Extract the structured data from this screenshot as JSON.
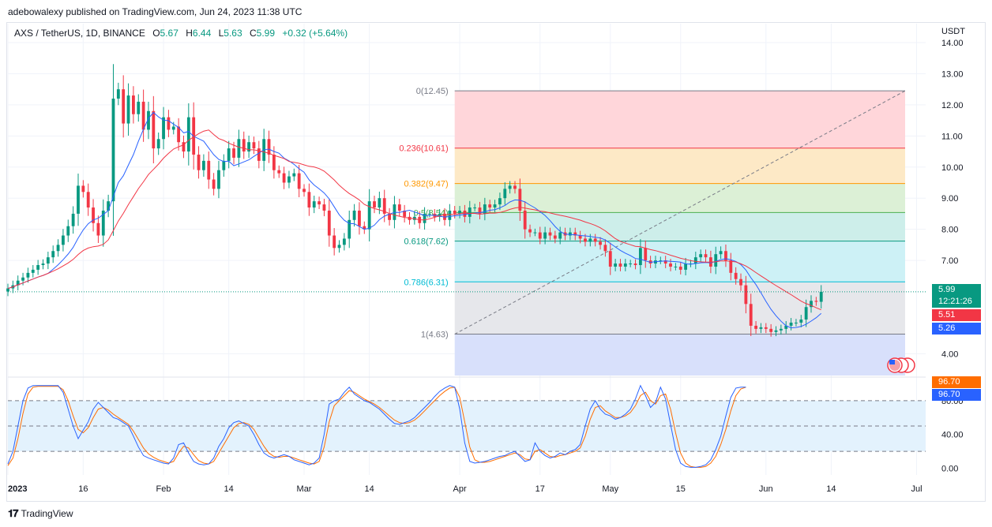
{
  "header": {
    "publisher": "adebowalexy published on TradingView.com, Jun 24, 2023 11:38 UTC"
  },
  "legend": {
    "symbol": "AXS / TetherUS, 1D, BINANCE",
    "open_label": "O",
    "open": "5.67",
    "high_label": "H",
    "high": "6.44",
    "low_label": "L",
    "low": "5.63",
    "close_label": "C",
    "close": "5.99",
    "change": "+0.32 (+5.64%)"
  },
  "currency": "USDT",
  "footer": {
    "brand": "TradingView"
  },
  "colors": {
    "up": "#089981",
    "down": "#f23645",
    "sma_fast": "#2962ff",
    "sma_slow": "#f23645",
    "stoch_k": "#2962ff",
    "stoch_d": "#ff6d00"
  },
  "price_tags": {
    "last": "5.99",
    "countdown": "12:21:26",
    "sma_slow": "5.51",
    "sma_fast": "5.26",
    "stoch_d": "96.70",
    "stoch_k": "96.70"
  },
  "chart_data": [
    {
      "type": "candlestick",
      "ylim": [
        3.3,
        14.0
      ],
      "yticks": [
        "14.00",
        "13.00",
        "12.00",
        "11.00",
        "10.00",
        "9.00",
        "8.00",
        "7.00",
        "4.00"
      ],
      "ytick_values": [
        14,
        13,
        12,
        11,
        10,
        9,
        8,
        7,
        4
      ],
      "xtick_labels": [
        "2023",
        "16",
        "Feb",
        "14",
        "Mar",
        "14",
        "Apr",
        "17",
        "May",
        "15",
        "Jun",
        "14",
        "Jul"
      ],
      "xtick_dates": [
        "2023-01-01",
        "2023-01-16",
        "2023-02-01",
        "2023-02-14",
        "2023-03-01",
        "2023-03-14",
        "2023-04-01",
        "2023-04-17",
        "2023-05-01",
        "2023-05-15",
        "2023-06-01",
        "2023-06-14",
        "2023-07-01"
      ],
      "first_date": "2023-01-01",
      "last_date": "2023-06-24",
      "close_series": [
        6.1,
        6.2,
        6.35,
        6.45,
        6.6,
        6.7,
        6.85,
        6.9,
        7.1,
        7.3,
        7.5,
        7.8,
        8.1,
        8.5,
        9.4,
        9.2,
        8.7,
        8.2,
        7.8,
        8.6,
        8.9,
        12.2,
        12.5,
        11.4,
        12.3,
        11.7,
        12.1,
        11.2,
        11.8,
        10.6,
        10.9,
        11.6,
        11.2,
        11.3,
        10.8,
        10.5,
        11.6,
        10.4,
        9.9,
        10.2,
        9.6,
        9.3,
        9.9,
        10.2,
        10.6,
        10.3,
        10.9,
        10.5,
        10.8,
        10.6,
        10.2,
        10.9,
        10.4,
        9.9,
        9.8,
        9.5,
        9.7,
        9.8,
        9.3,
        9.2,
        8.7,
        8.9,
        8.8,
        8.6,
        7.8,
        7.4,
        7.5,
        7.7,
        8.3,
        8.6,
        8.1,
        8.0,
        8.9,
        8.7,
        9.0,
        8.5,
        8.3,
        8.8,
        8.6,
        8.4,
        8.3,
        8.4,
        8.2,
        8.5,
        8.5,
        8.4,
        8.5,
        8.3,
        8.6,
        8.5,
        8.6,
        8.4,
        8.7,
        8.7,
        8.5,
        8.8,
        8.7,
        8.8,
        9.0,
        9.3,
        9.4,
        9.3,
        8.6,
        8.0,
        7.9,
        7.9,
        7.7,
        7.9,
        7.8,
        7.7,
        7.9,
        7.8,
        7.9,
        7.8,
        7.7,
        7.6,
        7.7,
        7.6,
        7.5,
        7.3,
        6.8,
        6.9,
        6.8,
        6.9,
        6.9,
        6.85,
        7.4,
        7.0,
        6.9,
        7.0,
        7.0,
        6.9,
        6.8,
        6.8,
        6.7,
        6.9,
        6.9,
        7.1,
        7.2,
        7.1,
        6.8,
        7.2,
        7.3,
        7.0,
        6.6,
        6.4,
        6.2,
        5.6,
        4.9,
        4.8,
        4.85,
        4.8,
        4.7,
        4.75,
        4.8,
        4.9,
        5.0,
        5.0,
        5.1,
        5.5,
        5.7,
        5.67,
        5.99
      ],
      "fib_levels": [
        {
          "label": "0(12.45)",
          "value": 12.45,
          "color": "#787b86"
        },
        {
          "label": "0.236(10.61)",
          "value": 10.61,
          "color": "#f23645"
        },
        {
          "label": "0.382(9.47)",
          "value": 9.47,
          "color": "#ff9800"
        },
        {
          "label": "0.5(8.54)",
          "value": 8.54,
          "color": "#4caf50"
        },
        {
          "label": "0.618(7.62)",
          "value": 7.62,
          "color": "#089981"
        },
        {
          "label": "0.786(6.31)",
          "value": 6.31,
          "color": "#00bcd4"
        },
        {
          "label": "1(4.63)",
          "value": 4.63,
          "color": "#787b86"
        }
      ],
      "fib_zone_fills": [
        "#ffd6da",
        "#fde9c6",
        "#dcf0d6",
        "#cdeeea",
        "#cdf1f6",
        "#e6e7eb",
        "#d8e0fb"
      ],
      "fib_start_date": "2023-03-31",
      "fib_end_date": "2023-06-24",
      "fib_bottom_value": 3.3
    },
    {
      "type": "line",
      "name": "",
      "ylim": [
        -8,
        108
      ],
      "yticks": [
        "80.00",
        "40.00",
        "0.00"
      ],
      "ytick_values": [
        80,
        40,
        0
      ],
      "band": [
        20,
        80
      ],
      "k_series": [
        5,
        20,
        50,
        80,
        95,
        98,
        98,
        98,
        98,
        98,
        98,
        90,
        70,
        50,
        35,
        45,
        55,
        70,
        78,
        72,
        66,
        60,
        58,
        54,
        50,
        38,
        25,
        15,
        12,
        10,
        8,
        6,
        5,
        12,
        28,
        30,
        18,
        8,
        5,
        4,
        5,
        12,
        26,
        35,
        48,
        54,
        56,
        53,
        50,
        40,
        28,
        18,
        14,
        12,
        14,
        16,
        14,
        10,
        8,
        6,
        4,
        6,
        12,
        40,
        76,
        80,
        82,
        90,
        96,
        88,
        84,
        80,
        78,
        74,
        70,
        64,
        58,
        53,
        52,
        54,
        56,
        60,
        66,
        72,
        78,
        85,
        91,
        95,
        98,
        96,
        70,
        30,
        8,
        6,
        7,
        8,
        10,
        12,
        14,
        15,
        18,
        20,
        14,
        8,
        10,
        30,
        20,
        15,
        12,
        14,
        18,
        16,
        20,
        22,
        28,
        50,
        70,
        80,
        70,
        64,
        62,
        58,
        60,
        64,
        70,
        82,
        98,
        86,
        72,
        78,
        96,
        82,
        52,
        22,
        6,
        2,
        1,
        1,
        2,
        4,
        10,
        22,
        38,
        62,
        84,
        95,
        96,
        96
      ],
      "d_series": [
        3,
        12,
        35,
        65,
        88,
        96,
        97,
        97,
        97,
        97,
        97,
        93,
        80,
        62,
        46,
        42,
        48,
        60,
        70,
        72,
        69,
        64,
        60,
        56,
        52,
        44,
        34,
        24,
        17,
        13,
        10,
        8,
        6,
        8,
        18,
        26,
        24,
        16,
        9,
        6,
        5,
        8,
        18,
        28,
        38,
        48,
        53,
        54,
        52,
        46,
        36,
        26,
        18,
        14,
        13,
        14,
        14,
        12,
        10,
        8,
        6,
        5,
        8,
        25,
        55,
        74,
        80,
        86,
        92,
        90,
        86,
        82,
        79,
        76,
        72,
        67,
        62,
        57,
        54,
        53,
        54,
        57,
        62,
        68,
        74,
        80,
        86,
        91,
        95,
        96,
        84,
        55,
        25,
        10,
        7,
        7,
        8,
        10,
        12,
        14,
        16,
        18,
        16,
        11,
        10,
        20,
        22,
        18,
        14,
        13,
        15,
        16,
        18,
        20,
        24,
        38,
        58,
        72,
        74,
        68,
        64,
        60,
        60,
        62,
        66,
        74,
        86,
        90,
        80,
        76,
        86,
        88,
        70,
        42,
        18,
        6,
        2,
        1,
        1,
        2,
        6,
        14,
        28,
        46,
        68,
        86,
        94,
        96
      ]
    }
  ]
}
